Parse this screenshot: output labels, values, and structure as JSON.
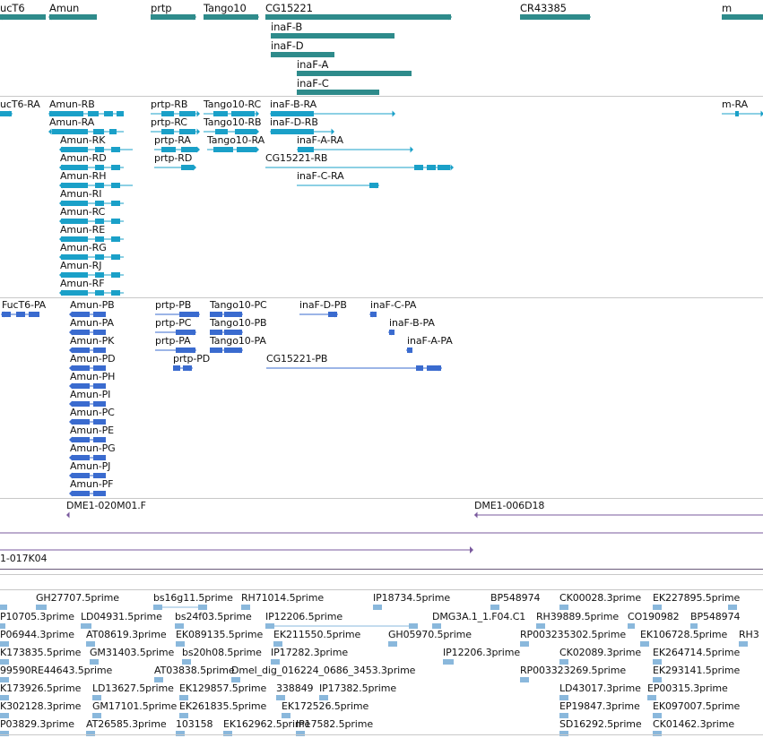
{
  "colors": {
    "gene": "#2e8b8b",
    "transcript": "#1aa0c8",
    "protein": "#3a6bcf",
    "clone": "#7a5a9e",
    "est": "#8ab8dc",
    "separator": "#c8c8c8"
  },
  "genes": [
    {
      "label": "ucT6"
    },
    {
      "label": "Amun"
    },
    {
      "label": "prtp"
    },
    {
      "label": "Tango10"
    },
    {
      "label": "CG15221"
    },
    {
      "label": "CR43385"
    },
    {
      "label": "m"
    },
    {
      "label": "inaF-B"
    },
    {
      "label": "inaF-D"
    },
    {
      "label": "inaF-A"
    },
    {
      "label": "inaF-C"
    }
  ],
  "transcripts": [
    {
      "label": "ucT6-RA"
    },
    {
      "label": "Amun-RB"
    },
    {
      "label": "prtp-RB"
    },
    {
      "label": "Tango10-RC"
    },
    {
      "label": "inaF-B-RA"
    },
    {
      "label": "m-RA"
    },
    {
      "label": "Amun-RA"
    },
    {
      "label": "prtp-RC"
    },
    {
      "label": "Tango10-RB"
    },
    {
      "label": "inaF-D-RB"
    },
    {
      "label": "Amun-RK"
    },
    {
      "label": "prtp-RA"
    },
    {
      "label": "Tango10-RA"
    },
    {
      "label": "inaF-A-RA"
    },
    {
      "label": "Amun-RD"
    },
    {
      "label": "prtp-RD"
    },
    {
      "label": "CG15221-RB"
    },
    {
      "label": "Amun-RH"
    },
    {
      "label": "inaF-C-RA"
    },
    {
      "label": "Amun-RI"
    },
    {
      "label": "Amun-RC"
    },
    {
      "label": "Amun-RE"
    },
    {
      "label": "Amun-RG"
    },
    {
      "label": "Amun-RJ"
    },
    {
      "label": "Amun-RF"
    }
  ],
  "proteins": [
    {
      "label": "FucT6-PA"
    },
    {
      "label": "Amun-PB"
    },
    {
      "label": "prtp-PB"
    },
    {
      "label": "Tango10-PC"
    },
    {
      "label": "inaF-D-PB"
    },
    {
      "label": "inaF-C-PA"
    },
    {
      "label": "Amun-PA"
    },
    {
      "label": "prtp-PC"
    },
    {
      "label": "Tango10-PB"
    },
    {
      "label": "inaF-B-PA"
    },
    {
      "label": "Amun-PK"
    },
    {
      "label": "prtp-PA"
    },
    {
      "label": "Tango10-PA"
    },
    {
      "label": "inaF-A-PA"
    },
    {
      "label": "Amun-PD"
    },
    {
      "label": "prtp-PD"
    },
    {
      "label": "CG15221-PB"
    },
    {
      "label": "Amun-PH"
    },
    {
      "label": "Amun-PI"
    },
    {
      "label": "Amun-PC"
    },
    {
      "label": "Amun-PE"
    },
    {
      "label": "Amun-PG"
    },
    {
      "label": "Amun-PJ"
    },
    {
      "label": "Amun-PF"
    }
  ],
  "clones": [
    {
      "label": "DME1-020M01.F"
    },
    {
      "label": "DME1-006D18"
    },
    {
      "label": "1-017K04"
    }
  ],
  "ests": [
    {
      "label": "GH27707.5prime"
    },
    {
      "label": "bs16g11.5prime"
    },
    {
      "label": "RH71014.5prime"
    },
    {
      "label": "IP18734.5prime"
    },
    {
      "label": "BP548974"
    },
    {
      "label": "CK00028.3prime"
    },
    {
      "label": "EK227895.5prime"
    },
    {
      "label": "P10705.3prime"
    },
    {
      "label": "LD04931.5prime"
    },
    {
      "label": "bs24f03.5prime"
    },
    {
      "label": "IP12206.5prime"
    },
    {
      "label": "DMG3A.1_1.F04.C1"
    },
    {
      "label": "RH39889.5prime"
    },
    {
      "label": "CO190982"
    },
    {
      "label": "BP548974"
    },
    {
      "label": "P06944.3prime"
    },
    {
      "label": "AT08619.3prime"
    },
    {
      "label": "EK089135.5prime"
    },
    {
      "label": "EK211550.5prime"
    },
    {
      "label": "GH05970.5prime"
    },
    {
      "label": "RP003235302.5prime"
    },
    {
      "label": "EK106728.5prime"
    },
    {
      "label": "RH3"
    },
    {
      "label": "K173835.5prime"
    },
    {
      "label": "GM31403.5prime"
    },
    {
      "label": "bs20h08.5prime"
    },
    {
      "label": "IP17282.3prime"
    },
    {
      "label": "IP12206.3prime"
    },
    {
      "label": "CK02089.3prime"
    },
    {
      "label": "EK264714.5prime"
    },
    {
      "label": "99590RE44643.5prime"
    },
    {
      "label": "AT03838.5prime"
    },
    {
      "label": "Dmel_dig_016224_0686_3453.3prime"
    },
    {
      "label": "RP003323269.5prime"
    },
    {
      "label": "EK293141.5prime"
    },
    {
      "label": "K173926.5prime"
    },
    {
      "label": "LD13627.5prime"
    },
    {
      "label": "EK129857.5prime"
    },
    {
      "label": "338849"
    },
    {
      "label": "IP17382.5prime"
    },
    {
      "label": "LD43017.3prime"
    },
    {
      "label": "EP00315.3prime"
    },
    {
      "label": "K302128.3prime"
    },
    {
      "label": "GM17101.5prime"
    },
    {
      "label": "EK261835.5prime"
    },
    {
      "label": "EK172526.5prime"
    },
    {
      "label": "EP19847.3prime"
    },
    {
      "label": "EK097007.5prime"
    },
    {
      "label": "P03829.3prime"
    },
    {
      "label": "AT26585.3prime"
    },
    {
      "label": "103158"
    },
    {
      "label": "EK162962.5prime"
    },
    {
      "label": "IP17582.5prime"
    },
    {
      "label": "SD16292.5prime"
    },
    {
      "label": "CK01462.3prime"
    }
  ]
}
